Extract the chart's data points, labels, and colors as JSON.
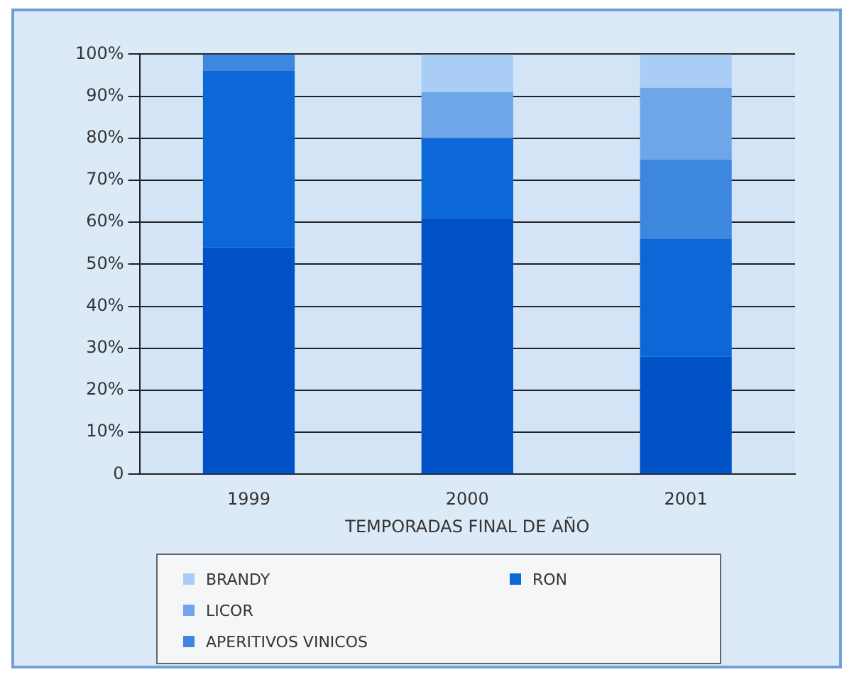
{
  "chart_data": {
    "type": "bar",
    "stacked": true,
    "xlabel": "TEMPORADAS FINAL DE AÑO",
    "categories": [
      "1999",
      "2000",
      "2001"
    ],
    "series": [
      {
        "color": "#0052c6",
        "values": [
          54,
          61,
          28
        ]
      },
      {
        "name": "RON",
        "color": "#0b68d6",
        "values": [
          42,
          19,
          28
        ]
      },
      {
        "name": "APERITIVOS VINICOS",
        "color": "#3d87de",
        "values": [
          4,
          0,
          19
        ]
      },
      {
        "name": "LICOR",
        "color": "#6fa6ea",
        "values": [
          0,
          11,
          17
        ]
      },
      {
        "name": "BRANDY",
        "color": "#a9cdf4",
        "values": [
          0,
          9,
          8
        ]
      }
    ],
    "ylim": [
      0,
      100
    ],
    "yticks": [
      {
        "value": 0,
        "label": "0"
      },
      {
        "value": 10,
        "label": "10%"
      },
      {
        "value": 20,
        "label": "20%"
      },
      {
        "value": 30,
        "label": "30%"
      },
      {
        "value": 40,
        "label": "40%"
      },
      {
        "value": 50,
        "label": "50%"
      },
      {
        "value": 60,
        "label": "60%"
      },
      {
        "value": 70,
        "label": "70%"
      },
      {
        "value": 80,
        "label": "80%"
      },
      {
        "value": 90,
        "label": "90%"
      },
      {
        "value": 100,
        "label": "100%"
      }
    ],
    "grid": "y",
    "legend": "bottom"
  }
}
